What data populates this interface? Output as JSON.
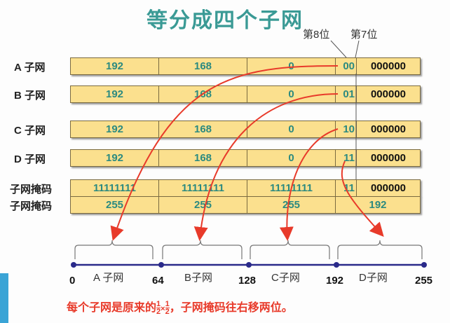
{
  "title": "等分成四个子网",
  "bit_labels": [
    "第8位",
    "第7位"
  ],
  "rows": [
    {
      "label": "A 子网",
      "octets": [
        "192",
        "168",
        "0"
      ],
      "bits": "00",
      "rest": "000000"
    },
    {
      "label": "B 子网",
      "octets": [
        "192",
        "168",
        "0"
      ],
      "bits": "01",
      "rest": "000000"
    },
    {
      "label": "C 子网",
      "octets": [
        "192",
        "168",
        "0"
      ],
      "bits": "10",
      "rest": "000000"
    },
    {
      "label": "D 子网",
      "octets": [
        "192",
        "168",
        "0"
      ],
      "bits": "11",
      "rest": "000000"
    }
  ],
  "mask": {
    "label1": "子网掩码",
    "label2": "子网掩码",
    "binary": [
      "11111111",
      "11111111",
      "11111111"
    ],
    "bits": "11",
    "rest": "000000",
    "decimal": [
      "255",
      "255",
      "255",
      "192"
    ]
  },
  "number_line": {
    "ticks": [
      "0",
      "64",
      "128",
      "192",
      "255"
    ],
    "segments": [
      "A 子网",
      "B子网",
      "C子网",
      "D子网"
    ]
  },
  "note": {
    "before": "每个子网是原来的",
    "num": "1",
    "den": "2",
    "times": "×",
    "after": "，子网掩码往右移两位。"
  },
  "colors": {
    "title": "#3a9a95",
    "arrow": "#e83a2a",
    "line": "#2a2a8a",
    "bar": "#fbe08e"
  }
}
